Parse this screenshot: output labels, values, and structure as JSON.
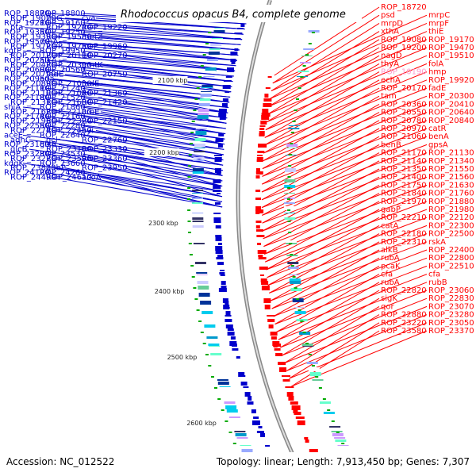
{
  "title": "Rhodococcus opacus B4, complete genome",
  "accession": "Accession: NC_012522",
  "topology": "Topology: linear; Length: 7,913,450 bp; Genes: 7,307",
  "colors": {
    "left_strand": "#0000cc",
    "right_strand": "#ff0000",
    "highlight_label": "#ff99cc",
    "backbone": "#999999",
    "tick": "#00aa00"
  },
  "kbp_ticks": [
    "2100 kbp",
    "2200 kbp",
    "2300 kbp",
    "2400 kbp",
    "2500 kbp",
    "2600 kbp"
  ],
  "left_labels": [
    {
      "t": "ROP_18870"
    },
    {
      "t": "ROP_18800"
    },
    {
      "t": "ROP_19070"
    },
    {
      "t": "thiG"
    },
    {
      "t": "cya"
    },
    {
      "t": "ROP_19210"
    },
    {
      "t": "ROP_19160"
    },
    {
      "t": "pta"
    },
    {
      "t": "ROP_19240"
    },
    {
      "t": "ROP_19220"
    },
    {
      "t": "ROP_19350"
    },
    {
      "t": "ROP_19250"
    },
    {
      "t": "ROP_19390"
    },
    {
      "t": "ROP_19580"
    },
    {
      "t": "metZ"
    },
    {
      "t": "ROP_19570"
    },
    {
      "t": "rnhA"
    },
    {
      "t": "ROP_19720"
    },
    {
      "t": "ROP_19750"
    },
    {
      "t": "ROP_19960"
    },
    {
      "t": "kgtP"
    },
    {
      "t": "ROP_19950"
    },
    {
      "t": "ROP_20120"
    },
    {
      "t": "ROP_20110"
    },
    {
      "t": "ROP_20270"
    },
    {
      "t": "ROP_20250"
    },
    {
      "t": "alkA"
    },
    {
      "t": "ROP_20420"
    },
    {
      "t": "ROP_20390"
    },
    {
      "t": "gmtK"
    },
    {
      "t": "ROP_20600"
    },
    {
      "t": "ROP_20560"
    },
    {
      "t": "ROP_20790"
    },
    {
      "t": "fadE"
    },
    {
      "t": "ROP_20750"
    },
    {
      "t": "ROP_20950"
    },
    {
      "t": "eda"
    },
    {
      "t": "ROP_20890"
    },
    {
      "t": "ROP_21030"
    },
    {
      "t": "fadE"
    },
    {
      "t": "ROP_21110"
    },
    {
      "t": "ROP_21240"
    },
    {
      "t": "ROP_21100"
    },
    {
      "t": "ROP_21040"
    },
    {
      "t": "ROP_21360"
    },
    {
      "t": "ROP_21180"
    },
    {
      "t": "ROP_21520"
    },
    {
      "t": "ROP_21310"
    },
    {
      "t": "ROP_21680"
    },
    {
      "t": "ROP_21420"
    },
    {
      "t": "shiA"
    },
    {
      "t": "ROP_21860"
    },
    {
      "t": "ROP_21620"
    },
    {
      "t": "ROP_22100"
    },
    {
      "t": "aroE"
    },
    {
      "t": "ROP_21740"
    },
    {
      "t": "ROP_22160"
    },
    {
      "t": "ROP_21960"
    },
    {
      "t": "ROP_22320"
    },
    {
      "t": "ROP_22150"
    },
    {
      "t": "ROP_22550"
    },
    {
      "t": "ROP_22280"
    },
    {
      "t": "ROP_22740"
    },
    {
      "t": "ROP_22450"
    },
    {
      "t": "hyi"
    },
    {
      "t": "aceE"
    },
    {
      "t": "ROP_22640"
    },
    {
      "t": "adhC"
    },
    {
      "t": "gcl"
    },
    {
      "t": "ROP_22760"
    },
    {
      "t": "ROP_23180"
    },
    {
      "t": "glxR"
    },
    {
      "t": "glcB"
    },
    {
      "t": "ROP_23100"
    },
    {
      "t": "ROP_23330"
    },
    {
      "t": "ROP_23230"
    },
    {
      "t": "ROP_23530"
    },
    {
      "t": "ROP_23270"
    },
    {
      "t": "ROP_23590"
    },
    {
      "t": "ROP_23360"
    },
    {
      "t": "kdgK"
    },
    {
      "t": "ROP_23660"
    },
    {
      "t": "ROP_23820"
    },
    {
      "t": "gabP"
    },
    {
      "t": "ROP_23950"
    },
    {
      "t": "ROP_24120"
    },
    {
      "t": "ROP_24260"
    },
    {
      "t": "ROP_24490"
    },
    {
      "t": "ROP_24610"
    },
    {
      "t": "acoA"
    }
  ],
  "right_labels": [
    {
      "t": "ROP_18720"
    },
    {
      "t": "psd"
    },
    {
      "t": "mrpC"
    },
    {
      "t": "mrpD"
    },
    {
      "t": "mrpF"
    },
    {
      "t": "xthA"
    },
    {
      "t": "thiE"
    },
    {
      "t": "ROP_19080"
    },
    {
      "t": "ROP_19170"
    },
    {
      "t": "ROP_19200"
    },
    {
      "t": "ROP_19470"
    },
    {
      "t": "nagD"
    },
    {
      "t": "ROP_19510"
    },
    {
      "t": "thyA"
    },
    {
      "t": "folA"
    },
    {
      "t": "ROP_10190"
    },
    {
      "t": "hmp"
    },
    {
      "t": "echA"
    },
    {
      "t": "ROP_19920"
    },
    {
      "t": "ROP_20170"
    },
    {
      "t": "fadE"
    },
    {
      "t": "tam"
    },
    {
      "t": "ROP_20300"
    },
    {
      "t": "ROP_20360"
    },
    {
      "t": "ROP_20410"
    },
    {
      "t": "ROP_20550"
    },
    {
      "t": "ROP_20640"
    },
    {
      "t": "ROP_20780"
    },
    {
      "t": "ROP_20840"
    },
    {
      "t": "ROP_20970"
    },
    {
      "t": "catR"
    },
    {
      "t": "ROP_21060"
    },
    {
      "t": "benA"
    },
    {
      "t": "benB"
    },
    {
      "t": "gpsA"
    },
    {
      "t": "ROP_21170"
    },
    {
      "t": "ROP_21130"
    },
    {
      "t": "ROP_21140"
    },
    {
      "t": "ROP_21340"
    },
    {
      "t": "ROP_21350"
    },
    {
      "t": "ROP_21550"
    },
    {
      "t": "ROP_21400"
    },
    {
      "t": "ROP_21560"
    },
    {
      "t": "ROP_21750"
    },
    {
      "t": "ROP_21630"
    },
    {
      "t": "ROP_21840"
    },
    {
      "t": "ROP_21760"
    },
    {
      "t": "ROP_21970"
    },
    {
      "t": "ROP_21880"
    },
    {
      "t": "gabP"
    },
    {
      "t": "ROP_21980"
    },
    {
      "t": "ROP_22210"
    },
    {
      "t": "ROP_22120"
    },
    {
      "t": "catA"
    },
    {
      "t": "ROP_22300"
    },
    {
      "t": "ROP_22180"
    },
    {
      "t": "ROP_22500"
    },
    {
      "t": "ROP_22310"
    },
    {
      "t": "rskA"
    },
    {
      "t": "alkB"
    },
    {
      "t": "ROP_22400"
    },
    {
      "t": "rubA"
    },
    {
      "t": "ROP_22800"
    },
    {
      "t": "pcaK"
    },
    {
      "t": "ROP_22510"
    },
    {
      "t": "cfa"
    },
    {
      "t": "cfa"
    },
    {
      "t": "rubA"
    },
    {
      "t": "rubB"
    },
    {
      "t": "ROP_22820"
    },
    {
      "t": "ROP_23060"
    },
    {
      "t": "sigK"
    },
    {
      "t": "ROP_22830"
    },
    {
      "t": "qor"
    },
    {
      "t": "ROP_23070"
    },
    {
      "t": "ROP_22880"
    },
    {
      "t": "ROP_23280"
    },
    {
      "t": "ROP_23220"
    },
    {
      "t": "ROP_23050"
    },
    {
      "t": "ROP_23580"
    },
    {
      "t": "ROP_23370"
    }
  ]
}
